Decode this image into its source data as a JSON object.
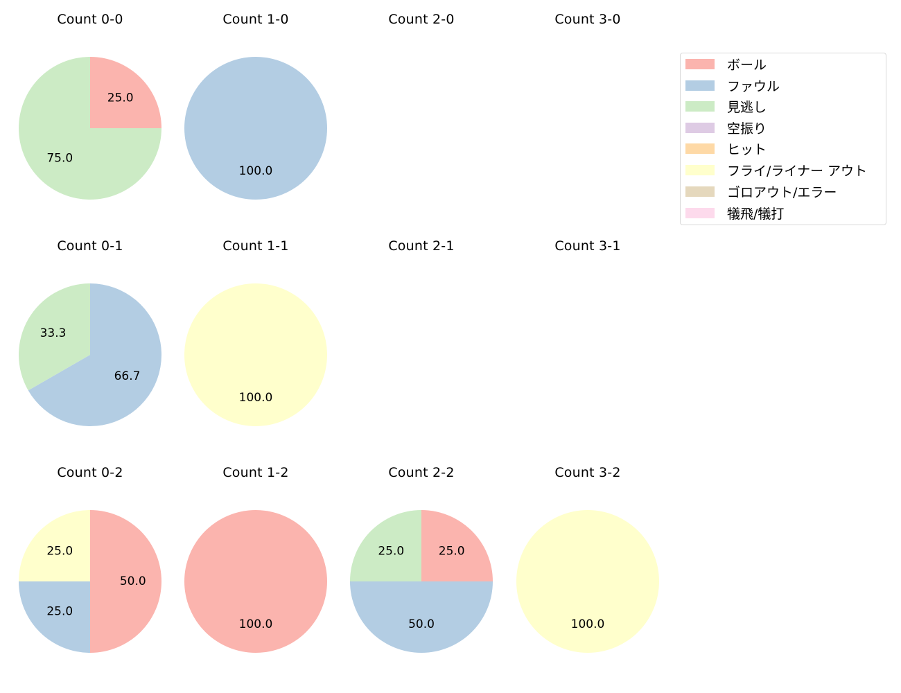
{
  "categories": [
    {
      "key": "ball",
      "label": "ボール",
      "color": "#fbb4ae"
    },
    {
      "key": "foul",
      "label": "ファウル",
      "color": "#b3cde3"
    },
    {
      "key": "looking",
      "label": "見逃し",
      "color": "#ccebc5"
    },
    {
      "key": "swinging",
      "label": "空振り",
      "color": "#decbe4"
    },
    {
      "key": "hit",
      "label": "ヒット",
      "color": "#fed9a6"
    },
    {
      "key": "fly_liner_out",
      "label": "フライ/ライナー アウト",
      "color": "#ffffcc"
    },
    {
      "key": "ground_out_error",
      "label": "ゴロアウト/エラー",
      "color": "#e5d8bd"
    },
    {
      "key": "sacrifice",
      "label": "犠飛/犠打",
      "color": "#fddaec"
    }
  ],
  "panels": [
    {
      "title": "Count 0-0",
      "col": 0,
      "row": 0,
      "slices": [
        {
          "key": "ball",
          "value": 25.0,
          "label": "25.0"
        },
        {
          "key": "looking",
          "value": 75.0,
          "label": "75.0"
        }
      ]
    },
    {
      "title": "Count 1-0",
      "col": 1,
      "row": 0,
      "slices": [
        {
          "key": "foul",
          "value": 100.0,
          "label": "100.0"
        }
      ]
    },
    {
      "title": "Count 2-0",
      "col": 2,
      "row": 0,
      "slices": []
    },
    {
      "title": "Count 3-0",
      "col": 3,
      "row": 0,
      "slices": []
    },
    {
      "title": "Count 0-1",
      "col": 0,
      "row": 1,
      "slices": [
        {
          "key": "foul",
          "value": 66.7,
          "label": "66.7"
        },
        {
          "key": "looking",
          "value": 33.3,
          "label": "33.3"
        }
      ]
    },
    {
      "title": "Count 1-1",
      "col": 1,
      "row": 1,
      "slices": [
        {
          "key": "fly_liner_out",
          "value": 100.0,
          "label": "100.0"
        }
      ]
    },
    {
      "title": "Count 2-1",
      "col": 2,
      "row": 1,
      "slices": []
    },
    {
      "title": "Count 3-1",
      "col": 3,
      "row": 1,
      "slices": []
    },
    {
      "title": "Count 0-2",
      "col": 0,
      "row": 2,
      "slices": [
        {
          "key": "ball",
          "value": 50.0,
          "label": "50.0"
        },
        {
          "key": "foul",
          "value": 25.0,
          "label": "25.0"
        },
        {
          "key": "fly_liner_out",
          "value": 25.0,
          "label": "25.0"
        }
      ]
    },
    {
      "title": "Count 1-2",
      "col": 1,
      "row": 2,
      "slices": [
        {
          "key": "ball",
          "value": 100.0,
          "label": "100.0"
        }
      ]
    },
    {
      "title": "Count 2-2",
      "col": 2,
      "row": 2,
      "slices": [
        {
          "key": "ball",
          "value": 25.0,
          "label": "25.0"
        },
        {
          "key": "foul",
          "value": 50.0,
          "label": "50.0"
        },
        {
          "key": "looking",
          "value": 25.0,
          "label": "25.0"
        }
      ]
    },
    {
      "title": "Count 3-2",
      "col": 3,
      "row": 2,
      "slices": [
        {
          "key": "fly_liner_out",
          "value": 100.0,
          "label": "100.0"
        }
      ]
    }
  ],
  "chart_data": {
    "type": "pie",
    "title": "",
    "legend": {
      "position": "upper right",
      "entries": [
        "ボール",
        "ファウル",
        "見逃し",
        "空振り",
        "ヒット",
        "フライ/ライナー アウト",
        "ゴロアウト/エラー",
        "犠飛/犠打"
      ]
    },
    "colors": [
      "#fbb4ae",
      "#b3cde3",
      "#ccebc5",
      "#decbe4",
      "#fed9a6",
      "#ffffcc",
      "#e5d8bd",
      "#fddaec"
    ],
    "value_format": "percent, 1 decimal",
    "grid": "3 rows x 4 columns (strikes x balls)",
    "charts": [
      {
        "title": "Count 0-0",
        "categories": [
          "ボール",
          "見逃し"
        ],
        "values": [
          25.0,
          75.0
        ]
      },
      {
        "title": "Count 1-0",
        "categories": [
          "ファウル"
        ],
        "values": [
          100.0
        ]
      },
      {
        "title": "Count 2-0",
        "categories": [],
        "values": []
      },
      {
        "title": "Count 3-0",
        "categories": [],
        "values": []
      },
      {
        "title": "Count 0-1",
        "categories": [
          "ファウル",
          "見逃し"
        ],
        "values": [
          66.7,
          33.3
        ]
      },
      {
        "title": "Count 1-1",
        "categories": [
          "フライ/ライナー アウト"
        ],
        "values": [
          100.0
        ]
      },
      {
        "title": "Count 2-1",
        "categories": [],
        "values": []
      },
      {
        "title": "Count 3-1",
        "categories": [],
        "values": []
      },
      {
        "title": "Count 0-2",
        "categories": [
          "ボール",
          "ファウル",
          "フライ/ライナー アウト"
        ],
        "values": [
          50.0,
          25.0,
          25.0
        ]
      },
      {
        "title": "Count 1-2",
        "categories": [
          "ボール"
        ],
        "values": [
          100.0
        ]
      },
      {
        "title": "Count 2-2",
        "categories": [
          "ボール",
          "ファウル",
          "見逃し"
        ],
        "values": [
          25.0,
          50.0,
          25.0
        ]
      },
      {
        "title": "Count 3-2",
        "categories": [
          "フライ/ライナー アウト"
        ],
        "values": [
          100.0
        ]
      }
    ]
  }
}
